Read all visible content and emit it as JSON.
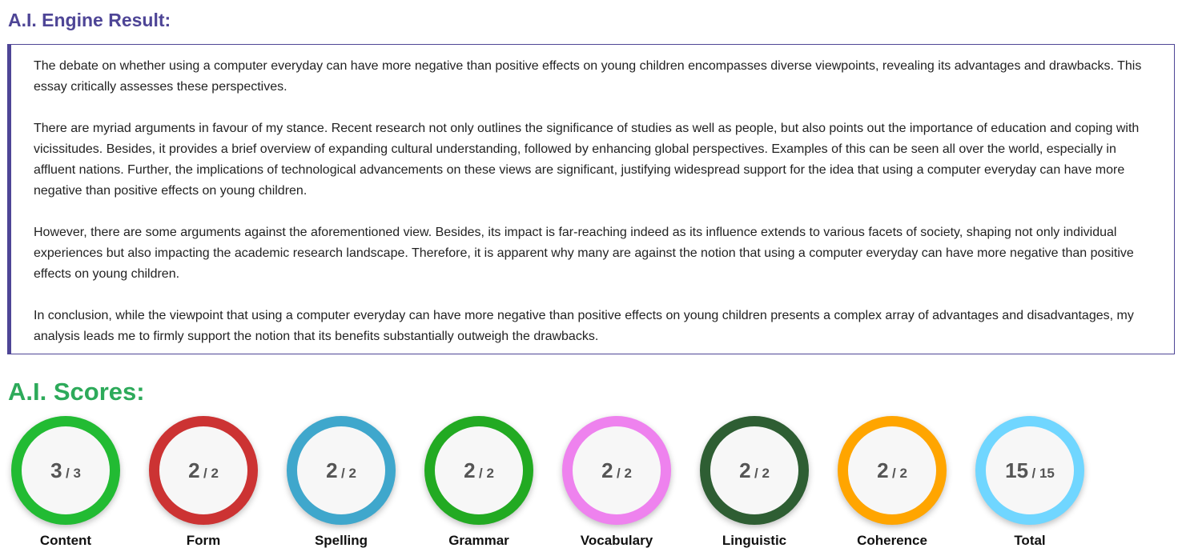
{
  "header": {
    "title": "A.I. Engine Result:"
  },
  "essay": {
    "paragraphs": [
      "The debate on whether using a computer everyday can have more negative than positive effects on young children encompasses diverse viewpoints, revealing its advantages and drawbacks. This essay critically assesses these perspectives.",
      "There are myriad arguments in favour of my stance. Recent research not only outlines the significance of studies as well as people, but also points out the importance of education and coping with vicissitudes. Besides, it provides a brief overview of expanding cultural understanding, followed by enhancing global perspectives. Examples of this can be seen all over the world, especially in affluent nations. Further, the implications of technological advancements on these views are significant, justifying widespread support for the idea that using a computer everyday can have more negative than positive effects on young children.",
      "However, there are some arguments against the aforementioned view. Besides, its impact is far-reaching indeed as its influence extends to various facets of society, shaping not only individual experiences but also impacting the academic research landscape. Therefore, it is apparent why many are against the notion that using a computer everyday can have more negative than positive effects on young children.",
      "In conclusion, while the viewpoint that using a computer everyday can have more negative than positive effects on young children presents a complex array of advantages and disadvantages, my analysis leads me to firmly support the notion that its benefits substantially outweigh the drawbacks."
    ]
  },
  "scores": {
    "title": "A.I. Scores:",
    "items": [
      {
        "label": "Content",
        "value": "3",
        "max": "/ 3",
        "color": "#22bb33"
      },
      {
        "label": "Form",
        "value": "2",
        "max": "/ 2",
        "color": "#cc3333"
      },
      {
        "label": "Spelling",
        "value": "2",
        "max": "/ 2",
        "color": "#3fa7cc"
      },
      {
        "label": "Grammar",
        "value": "2",
        "max": "/ 2",
        "color": "#22aa22"
      },
      {
        "label": "Vocabulary",
        "value": "2",
        "max": "/ 2",
        "color": "#ee82ee"
      },
      {
        "label": "Linguistic",
        "value": "2",
        "max": "/ 2",
        "color": "#2e5e33"
      },
      {
        "label": "Coherence",
        "value": "2",
        "max": "/ 2",
        "color": "#ffa500"
      },
      {
        "label": "Total",
        "value": "15",
        "max": "/ 15",
        "color": "#70d6ff"
      }
    ]
  }
}
